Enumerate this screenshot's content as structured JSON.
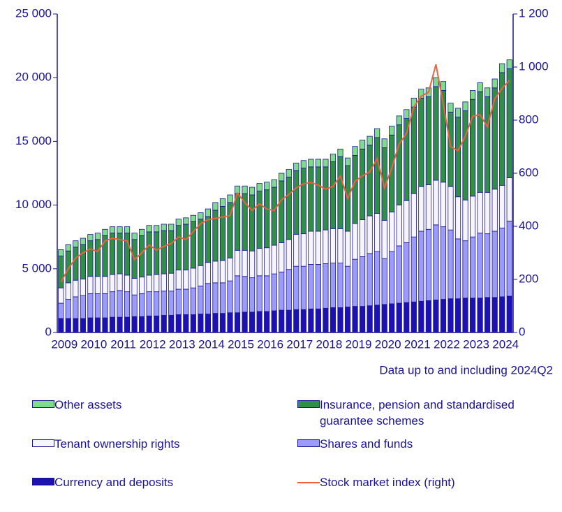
{
  "chart_data": {
    "type": "bar",
    "stacked": true,
    "note": "Data up to and including 2024Q2",
    "categories": [
      "2009",
      null,
      null,
      null,
      "2010",
      null,
      null,
      null,
      "2011",
      null,
      null,
      null,
      "2012",
      null,
      null,
      null,
      "2013",
      null,
      null,
      null,
      "2014",
      null,
      null,
      null,
      "2015",
      null,
      null,
      null,
      "2016",
      null,
      null,
      null,
      "2017",
      null,
      null,
      null,
      "2018",
      null,
      null,
      null,
      "2019",
      null,
      null,
      null,
      "2020",
      null,
      null,
      null,
      "2021",
      null,
      null,
      null,
      "2022",
      null,
      null,
      null,
      "2023",
      null,
      null,
      null,
      "2024",
      null
    ],
    "ylim": [
      0,
      25000
    ],
    "yticks": [
      0,
      {
        "value": 5000,
        "label": "5 000"
      },
      {
        "value": 10000,
        "label": "10 000"
      },
      {
        "value": 15000,
        "label": "15 000"
      },
      {
        "value": 20000,
        "label": "20 000"
      },
      {
        "value": 25000,
        "label": "25 000"
      }
    ],
    "y2lim": [
      0,
      1200
    ],
    "y2ticks": [
      0,
      200,
      400,
      600,
      800,
      {
        "value": 1000,
        "label": "1 000"
      },
      {
        "value": 1200,
        "label": "1 200"
      }
    ],
    "series": [
      {
        "name": "Currency and deposits",
        "color": "#1c12b4",
        "values": [
          1100,
          1100,
          1100,
          1100,
          1150,
          1150,
          1150,
          1200,
          1200,
          1200,
          1250,
          1250,
          1300,
          1300,
          1350,
          1350,
          1400,
          1400,
          1400,
          1450,
          1450,
          1500,
          1500,
          1550,
          1550,
          1600,
          1600,
          1650,
          1650,
          1700,
          1750,
          1750,
          1800,
          1800,
          1850,
          1850,
          1900,
          1950,
          1950,
          2000,
          2050,
          2050,
          2100,
          2150,
          2200,
          2250,
          2300,
          2350,
          2400,
          2450,
          2500,
          2550,
          2600,
          2650,
          2650,
          2700,
          2700,
          2700,
          2750,
          2750,
          2800,
          2850
        ]
      },
      {
        "name": "Shares and funds",
        "color": "#9b9bfa",
        "values": [
          1200,
          1500,
          1700,
          1800,
          1900,
          1900,
          1900,
          2000,
          2100,
          2000,
          1700,
          1800,
          1900,
          1900,
          1900,
          1900,
          2000,
          2000,
          2100,
          2200,
          2400,
          2400,
          2400,
          2500,
          2900,
          2800,
          2700,
          2800,
          2800,
          2900,
          3000,
          3200,
          3400,
          3400,
          3500,
          3500,
          3500,
          3500,
          3500,
          3200,
          3700,
          3900,
          4100,
          4200,
          3600,
          4100,
          4500,
          4700,
          5100,
          5500,
          5600,
          5900,
          5700,
          5400,
          4700,
          4500,
          4800,
          5100,
          5000,
          5200,
          5400,
          5900
        ]
      },
      {
        "name": "Tenant ownership rights",
        "color": "#f6f5ff",
        "values": [
          1200,
          1300,
          1300,
          1300,
          1350,
          1350,
          1350,
          1350,
          1300,
          1300,
          1300,
          1300,
          1300,
          1350,
          1350,
          1400,
          1500,
          1500,
          1550,
          1600,
          1650,
          1700,
          1750,
          1800,
          2000,
          2050,
          2100,
          2150,
          2200,
          2250,
          2300,
          2350,
          2500,
          2550,
          2600,
          2600,
          2650,
          2700,
          2700,
          2750,
          2800,
          2900,
          2950,
          3000,
          3000,
          3100,
          3200,
          3300,
          3400,
          3500,
          3500,
          3500,
          3500,
          3400,
          3300,
          3200,
          3200,
          3200,
          3250,
          3300,
          3350,
          3400
        ]
      },
      {
        "name": "Insurance, pension and standardised guarantee schemes",
        "color": "#2f8f45",
        "values": [
          2500,
          2500,
          2600,
          2700,
          2800,
          2900,
          3200,
          3250,
          3200,
          3300,
          3050,
          3250,
          3400,
          3350,
          3400,
          3350,
          3500,
          3600,
          3650,
          3650,
          3600,
          4000,
          4250,
          4350,
          4450,
          4450,
          4400,
          4500,
          4550,
          4550,
          4850,
          4900,
          5000,
          5150,
          5050,
          5050,
          4950,
          5250,
          5650,
          5150,
          5350,
          5550,
          5550,
          5950,
          5700,
          6050,
          6300,
          6450,
          6800,
          6950,
          6900,
          7350,
          7200,
          5850,
          6250,
          7000,
          7600,
          7900,
          7500,
          7950,
          8850,
          8550
        ]
      },
      {
        "name": "Other assets",
        "color": "#7fdc8a",
        "values": [
          500,
          500,
          500,
          500,
          500,
          500,
          500,
          500,
          500,
          500,
          500,
          500,
          500,
          500,
          500,
          500,
          500,
          500,
          500,
          500,
          600,
          600,
          600,
          600,
          600,
          600,
          600,
          600,
          600,
          600,
          600,
          600,
          600,
          600,
          600,
          600,
          600,
          600,
          600,
          600,
          700,
          700,
          700,
          700,
          700,
          700,
          700,
          700,
          700,
          700,
          700,
          700,
          700,
          700,
          700,
          700,
          700,
          700,
          700,
          700,
          700,
          700
        ]
      },
      {
        "name": "Stock market index (right)",
        "color": "#f0603a",
        "axis": "y2",
        "values": [
          190,
          240,
          280,
          300,
          315,
          305,
          345,
          355,
          350,
          345,
          275,
          300,
          330,
          310,
          325,
          335,
          360,
          350,
          380,
          410,
          425,
          430,
          435,
          440,
          525,
          490,
          460,
          485,
          465,
          460,
          500,
          520,
          545,
          560,
          565,
          555,
          540,
          550,
          590,
          505,
          570,
          590,
          605,
          655,
          545,
          620,
          710,
          750,
          850,
          890,
          905,
          1010,
          860,
          700,
          685,
          740,
          815,
          820,
          775,
          880,
          920,
          950
        ]
      }
    ]
  }
}
